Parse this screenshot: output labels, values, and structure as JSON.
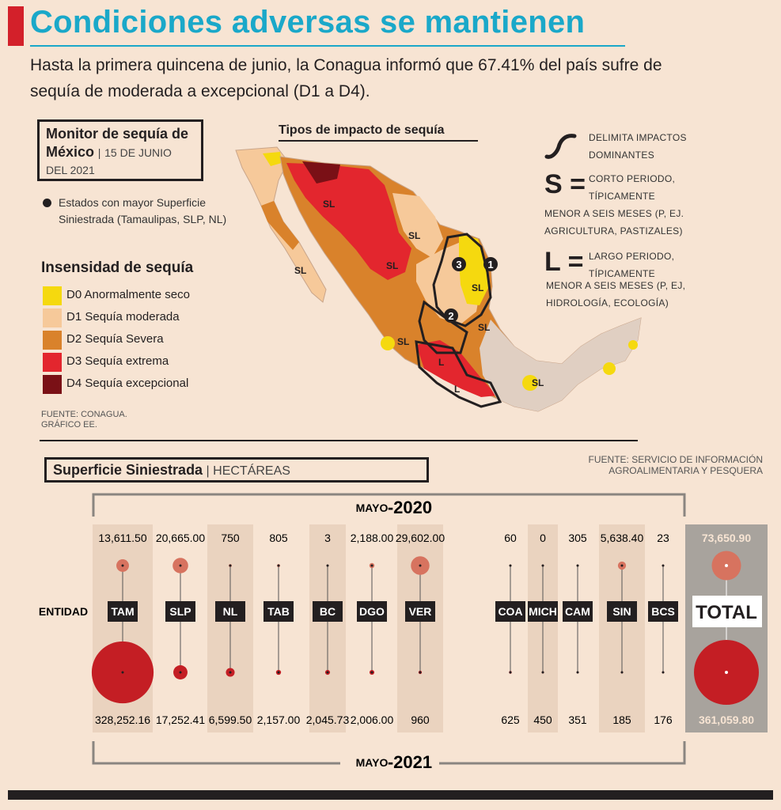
{
  "title": "Condiciones adversas se mantienen",
  "subtitle": "Hasta la primera quincena de junio, la Conagua informó que 67.41% del país sufre de sequía de moderada a excepcional (D1 a D4).",
  "monitor": {
    "bold": "Monitor de sequía de México",
    "separator": "|",
    "date": "15 DE JUNIO DEL 2021"
  },
  "dot_note": "Estados con mayor Superficie Siniestrada (Tamaulipas, SLP, NL)",
  "legend": {
    "title": "Insensidad de sequía",
    "items": [
      {
        "label": "D0 Anormalmente seco",
        "color": "#f5d90f"
      },
      {
        "label": "D1 Sequía moderada",
        "color": "#f6c99a"
      },
      {
        "label": "D2 Sequía Severa",
        "color": "#d9822b"
      },
      {
        "label": "D3 Sequía extrema",
        "color": "#e3262e"
      },
      {
        "label": "D4 Sequía excepcional",
        "color": "#7a1016"
      }
    ]
  },
  "map_source": {
    "line1": "FUENTE: CONAGUA.",
    "line2": "GRÁFICO EE."
  },
  "map": {
    "title": "Tipos de impacto de sequía",
    "labels": [
      "SL",
      "SL",
      "SL",
      "SL",
      "SL",
      "SL",
      "SL",
      "SL",
      "L",
      "L"
    ],
    "markers": [
      "1",
      "2",
      "3"
    ]
  },
  "impact_key": {
    "curve_text_1": "DELIMITA IMPACTOS",
    "curve_text_2": "DOMINANTES",
    "s_letter": "S =",
    "s_text_1": "CORTO PERIODO,",
    "s_text_2": "TÍPICAMENTE",
    "s_text_3": "MENOR A SEIS MESES (P, EJ.",
    "s_text_4": "AGRICULTURA, PASTIZALES)",
    "l_letter": "L =",
    "l_text_1": "LARGO PERIODO,",
    "l_text_2": "TÍPICAMENTE",
    "l_text_3": "MENOR A SEIS MESES (P, EJ,",
    "l_text_4": "HIDROLOGÍA, ECOLOGÍA)"
  },
  "superficie": {
    "bold": "Superficie Siniestrada",
    "separator": "|",
    "unit": "HECTÁREAS"
  },
  "chart_source": {
    "line1": "FUENTE: SERVICIO DE INFORMACIÓN",
    "line2": "AGROALIMENTARIA Y PESQUERA"
  },
  "chart_data": {
    "type": "scatter",
    "title": "Superficie Siniestrada",
    "unit": "HECTÁREAS",
    "row_label": "ENTIDAD",
    "top_period": {
      "month": "MAYO",
      "year": "-2020"
    },
    "bottom_period": {
      "month": "MAYO",
      "year": "-2021"
    },
    "categories": [
      "TAM",
      "SLP",
      "NL",
      "TAB",
      "BC",
      "DGO",
      "VER",
      "COA",
      "MICH",
      "CAM",
      "SIN",
      "BCS"
    ],
    "series": [
      {
        "name": "MAYO -2020",
        "values": [
          13611.5,
          20665.0,
          750,
          805,
          3,
          2188.0,
          29602.0,
          60,
          0,
          305,
          5638.4,
          23
        ],
        "labels": [
          "13,611.50",
          "20,665.00",
          "750",
          "805",
          "3",
          "2,188.00",
          "29,602.00",
          "60",
          "0",
          "305",
          "5,638.40",
          "23"
        ]
      },
      {
        "name": "MAYO -2021",
        "values": [
          328252.16,
          17252.41,
          6599.5,
          2157.0,
          2045.73,
          2006.0,
          960,
          625,
          450,
          351,
          185,
          176
        ],
        "labels": [
          "328,252.16",
          "17,252.41",
          "6,599.50",
          "2,157.00",
          "2,045.73",
          "2,006.00",
          "960",
          "625",
          "450",
          "351",
          "185",
          "176"
        ]
      }
    ],
    "total": {
      "label": "TOTAL",
      "value_2020": 73650.9,
      "label_2020": "73,650.90",
      "value_2021": 361059.8,
      "label_2021": "361,059.80"
    },
    "colors": {
      "y2020": "#d7735f",
      "y2021": "#c41e24",
      "band": "#ead3bf",
      "total_bg": "#a8a39d"
    }
  }
}
